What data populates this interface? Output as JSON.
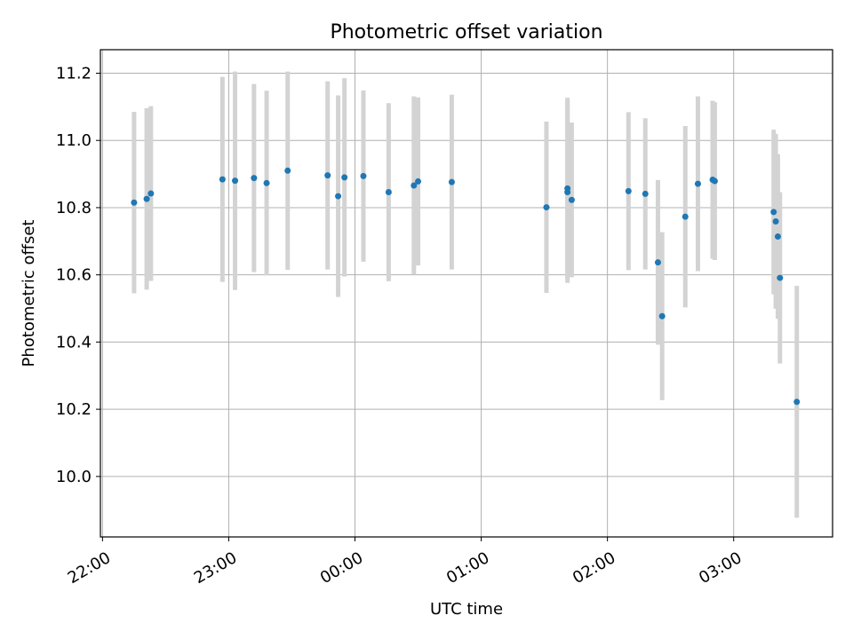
{
  "chart_data": {
    "type": "scatter",
    "title": "Photometric offset variation",
    "xlabel": "UTC time",
    "ylabel": "Photometric offset",
    "x_unit": "UTC time (HH:MM)",
    "xlim": [
      "21:59",
      "03:47"
    ],
    "ylim": [
      9.82,
      11.27
    ],
    "x_ticks": [
      "22:00",
      "23:00",
      "00:00",
      "01:00",
      "02:00",
      "03:00"
    ],
    "y_ticks": [
      10.0,
      10.2,
      10.4,
      10.6,
      10.8,
      11.0,
      11.2
    ],
    "grid": true,
    "colors": {
      "point": "#1f77b4",
      "error_bar": "#d3d3d3",
      "grid": "#b0b0b0"
    },
    "series": [
      {
        "points": [
          {
            "x": "22:15",
            "y": 10.815,
            "err": 0.27
          },
          {
            "x": "22:21",
            "y": 10.826,
            "err": 0.27
          },
          {
            "x": "22:23",
            "y": 10.842,
            "err": 0.26
          },
          {
            "x": "22:57",
            "y": 10.884,
            "err": 0.305
          },
          {
            "x": "23:03",
            "y": 10.88,
            "err": 0.325
          },
          {
            "x": "23:12",
            "y": 10.888,
            "err": 0.28
          },
          {
            "x": "23:18",
            "y": 10.873,
            "err": 0.275
          },
          {
            "x": "23:28",
            "y": 10.91,
            "err": 0.295
          },
          {
            "x": "23:47",
            "y": 10.896,
            "err": 0.28
          },
          {
            "x": "23:52",
            "y": 10.834,
            "err": 0.3
          },
          {
            "x": "23:55",
            "y": 10.89,
            "err": 0.295
          },
          {
            "x": "00:04",
            "y": 10.894,
            "err": 0.255
          },
          {
            "x": "00:16",
            "y": 10.846,
            "err": 0.265
          },
          {
            "x": "00:28",
            "y": 10.866,
            "err": 0.265
          },
          {
            "x": "00:30",
            "y": 10.878,
            "err": 0.25
          },
          {
            "x": "00:46",
            "y": 10.876,
            "err": 0.26
          },
          {
            "x": "01:31",
            "y": 10.801,
            "err": 0.255
          },
          {
            "x": "01:41",
            "y": 10.846,
            "err": 0.27
          },
          {
            "x": "01:41",
            "y": 10.857,
            "err": 0.27
          },
          {
            "x": "01:43",
            "y": 10.823,
            "err": 0.23
          },
          {
            "x": "02:10",
            "y": 10.849,
            "err": 0.235
          },
          {
            "x": "02:18",
            "y": 10.841,
            "err": 0.225
          },
          {
            "x": "02:24",
            "y": 10.637,
            "err": 0.245
          },
          {
            "x": "02:26",
            "y": 10.477,
            "err": 0.25
          },
          {
            "x": "02:37",
            "y": 10.773,
            "err": 0.27
          },
          {
            "x": "02:43",
            "y": 10.871,
            "err": 0.26
          },
          {
            "x": "02:50",
            "y": 10.883,
            "err": 0.235
          },
          {
            "x": "02:51",
            "y": 10.879,
            "err": 0.235
          },
          {
            "x": "03:19",
            "y": 10.787,
            "err": 0.245
          },
          {
            "x": "03:20",
            "y": 10.759,
            "err": 0.26
          },
          {
            "x": "03:21",
            "y": 10.714,
            "err": 0.245
          },
          {
            "x": "03:22",
            "y": 10.591,
            "err": 0.255
          },
          {
            "x": "03:30",
            "y": 10.222,
            "err": 0.345
          }
        ]
      }
    ]
  }
}
